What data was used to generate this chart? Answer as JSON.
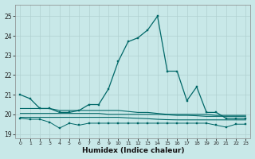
{
  "xlabel": "Humidex (Indice chaleur)",
  "bg_color": "#c8e8e8",
  "grid_color": "#b0d0d0",
  "line_color": "#006868",
  "xlim": [
    -0.5,
    23.5
  ],
  "ylim": [
    18.8,
    25.6
  ],
  "yticks": [
    19,
    20,
    21,
    22,
    23,
    24,
    25
  ],
  "xticks": [
    0,
    1,
    2,
    3,
    4,
    5,
    6,
    7,
    8,
    9,
    10,
    11,
    12,
    13,
    14,
    15,
    16,
    17,
    18,
    19,
    20,
    21,
    22,
    23
  ],
  "main_line": [
    21.0,
    20.8,
    20.3,
    20.3,
    20.1,
    20.1,
    20.2,
    20.5,
    20.5,
    21.3,
    22.7,
    23.7,
    23.9,
    24.3,
    25.0,
    22.2,
    22.2,
    20.7,
    21.4,
    20.1,
    20.1,
    19.8,
    19.8,
    19.8
  ],
  "flat_line1": [
    20.3,
    20.3,
    20.3,
    20.3,
    20.2,
    20.2,
    20.2,
    20.2,
    20.2,
    20.2,
    20.2,
    20.15,
    20.1,
    20.1,
    20.05,
    20.0,
    20.0,
    20.0,
    20.0,
    20.0,
    19.95,
    19.95,
    19.95,
    19.95
  ],
  "flat_line2": [
    20.05,
    20.05,
    20.05,
    20.05,
    20.05,
    20.05,
    20.05,
    20.05,
    20.05,
    20.0,
    20.0,
    20.0,
    20.0,
    20.0,
    20.0,
    19.98,
    19.95,
    19.95,
    19.93,
    19.9,
    19.9,
    19.9,
    19.9,
    19.9
  ],
  "flat_line3": [
    19.85,
    19.85,
    19.85,
    19.85,
    19.85,
    19.85,
    19.85,
    19.85,
    19.85,
    19.85,
    19.85,
    19.82,
    19.8,
    19.78,
    19.75,
    19.73,
    19.72,
    19.72,
    19.72,
    19.72,
    19.72,
    19.72,
    19.72,
    19.72
  ],
  "zigzag_line": [
    19.8,
    19.75,
    19.75,
    19.6,
    19.3,
    19.55,
    19.45,
    19.55,
    19.55,
    19.55,
    19.55,
    19.55,
    19.55,
    19.55,
    19.55,
    19.55,
    19.55,
    19.55,
    19.55,
    19.55,
    19.45,
    19.35,
    19.5,
    19.5
  ]
}
